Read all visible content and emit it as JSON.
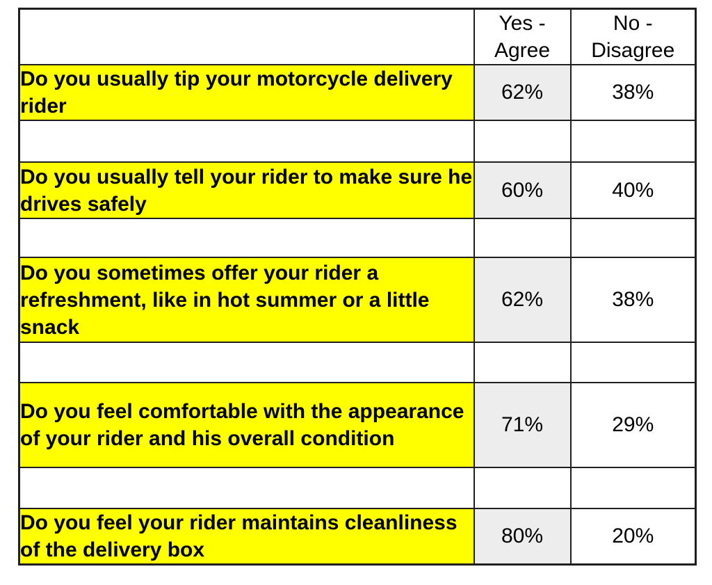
{
  "chart_data": {
    "type": "table",
    "columns": [
      "",
      "Yes - Agree",
      "No - Disagree"
    ],
    "rows": [
      {
        "question": "Do you usually tip your motorcycle delivery rider",
        "yes": "62%",
        "no": "38%"
      },
      {
        "question": "Do you usually tell your rider to make sure he drives safely",
        "yes": "60%",
        "no": "40%"
      },
      {
        "question": "Do you sometimes offer your rider a refreshment, like in hot summer or a little snack",
        "yes": "62%",
        "no": "38%"
      },
      {
        "question": "Do you feel comfortable with the appearance of your rider and his overall condition",
        "yes": "71%",
        "no": "29%"
      },
      {
        "question": "Do you feel your rider maintains cleanliness of the delivery box",
        "yes": "80%",
        "no": "20%"
      }
    ],
    "series": [
      {
        "name": "Yes - Agree",
        "values": [
          62,
          60,
          62,
          71,
          80
        ]
      },
      {
        "name": "No - Disagree",
        "values": [
          38,
          40,
          38,
          29,
          20
        ]
      }
    ],
    "unit": "%"
  },
  "colors": {
    "question_highlight": "#ffff00",
    "yes_cell_bg": "#ededed",
    "border": "#1f1f1f",
    "text": "#000000",
    "background": "#ffffff"
  }
}
